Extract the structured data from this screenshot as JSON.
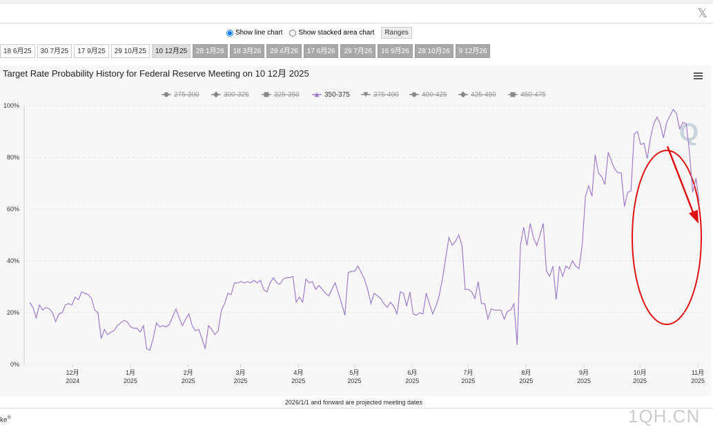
{
  "controls": {
    "options": [
      {
        "label": "Show line chart",
        "checked": true
      },
      {
        "label": "Show stacked area chart",
        "checked": false
      }
    ],
    "ranges": "Ranges"
  },
  "tabs": [
    {
      "label": "18 6月25",
      "state": "plain"
    },
    {
      "label": "30 7月25",
      "state": "plain"
    },
    {
      "label": "17 9月25",
      "state": "plain"
    },
    {
      "label": "29 10月25",
      "state": "plain"
    },
    {
      "label": "10 12月25",
      "state": "selected"
    },
    {
      "label": "28 1月26",
      "state": "projected"
    },
    {
      "label": "18 3月26",
      "state": "projected"
    },
    {
      "label": "29 4月26",
      "state": "projected"
    },
    {
      "label": "17 6月26",
      "state": "projected"
    },
    {
      "label": "29 7月26",
      "state": "projected"
    },
    {
      "label": "16 9月26",
      "state": "projected"
    },
    {
      "label": "28 10月26",
      "state": "projected"
    },
    {
      "label": "9 12月26",
      "state": "projected"
    }
  ],
  "chart_data": {
    "type": "line",
    "title": "Target Rate Probability History for Federal Reserve Meeting on 10 12月 2025",
    "series": [
      {
        "name": "275-300",
        "marker": "circle",
        "visible": false
      },
      {
        "name": "300-325",
        "marker": "diamond",
        "visible": false
      },
      {
        "name": "325-350",
        "marker": "square",
        "visible": false
      },
      {
        "name": "350-375",
        "marker": "triangle",
        "visible": true,
        "color": "#a07cc8",
        "values": [
          24,
          22,
          18,
          23,
          21,
          22,
          21.5,
          20,
          16.5,
          19.5,
          20,
          23,
          23.5,
          23,
          26,
          25,
          28,
          27.5,
          27,
          25.5,
          21,
          20,
          10,
          13.5,
          11.5,
          12.5,
          13,
          15,
          16,
          17,
          16.5,
          14.5,
          14,
          14,
          12.5,
          15,
          6,
          5.5,
          10,
          16,
          14.5,
          15,
          14.5,
          15.5,
          18.5,
          21.5,
          18,
          15,
          17.5,
          19.5,
          15,
          13,
          13.5,
          10,
          6,
          15,
          13.5,
          11.5,
          13,
          21,
          23.5,
          27.5,
          27,
          31.5,
          31.5,
          32,
          31.5,
          32,
          31.5,
          32.5,
          31.5,
          32.5,
          29,
          28,
          31.5,
          33.5,
          31.5,
          31,
          33,
          33.5,
          33.5,
          34,
          24,
          26,
          24,
          33,
          31.5,
          32,
          29,
          30.5,
          29,
          27.5,
          26.5,
          29,
          31.5,
          27.5,
          23.5,
          19,
          35.5,
          36,
          36,
          38,
          35.5,
          33,
          29,
          23.5,
          27.5,
          26.5,
          25.5,
          23.5,
          22,
          24,
          22.5,
          19.5,
          28,
          27.5,
          22.5,
          28,
          19.5,
          19,
          20,
          19.5,
          27.5,
          23.5,
          19.5,
          22.5,
          26.5,
          33,
          41,
          49,
          46,
          47.5,
          50,
          46,
          29,
          29,
          28,
          25.5,
          32,
          23.5,
          23.5,
          17.5,
          21.5,
          21,
          21,
          21,
          17.5,
          20.5,
          21,
          23.5,
          7.5,
          46,
          53,
          46,
          54.5,
          49,
          46,
          50,
          54.5,
          36,
          34,
          38,
          25,
          38,
          34,
          38,
          37,
          40,
          38,
          37,
          46,
          65,
          69,
          65,
          81,
          74,
          72.5,
          69.5,
          82,
          78.5,
          75.5,
          74,
          74,
          61,
          66.5,
          67,
          89,
          90,
          85,
          85.5,
          79.5,
          87.5,
          93,
          95.5,
          93,
          87.5,
          93.5,
          96,
          98.5,
          97,
          91,
          93.5,
          93,
          82,
          66.5,
          72,
          63
        ]
      },
      {
        "name": "375-400",
        "marker": "triangle-down",
        "visible": false
      },
      {
        "name": "400-425",
        "marker": "circle",
        "visible": false
      },
      {
        "name": "425-450",
        "marker": "diamond",
        "visible": false
      },
      {
        "name": "450-475",
        "marker": "square",
        "visible": false
      }
    ],
    "ylim": [
      0,
      100
    ],
    "yticks": [
      {
        "value": 0,
        "label": "0%"
      },
      {
        "value": 20,
        "label": "20%"
      },
      {
        "value": 40,
        "label": "40%"
      },
      {
        "value": 60,
        "label": "60%"
      },
      {
        "value": 80,
        "label": "80%"
      },
      {
        "value": 100,
        "label": "100%"
      }
    ],
    "xlim": [
      "2024-11",
      "2025-11"
    ],
    "xticks": [
      {
        "value": "2024-12",
        "label": [
          "12月",
          "2024"
        ]
      },
      {
        "value": "2025-01",
        "label": [
          "1月",
          "2025"
        ]
      },
      {
        "value": "2025-02",
        "label": [
          "2月",
          "2025"
        ]
      },
      {
        "value": "2025-03",
        "label": [
          "3月",
          "2025"
        ]
      },
      {
        "value": "2025-04",
        "label": [
          "4月",
          "2025"
        ]
      },
      {
        "value": "2025-05",
        "label": [
          "5月",
          "2025"
        ]
      },
      {
        "value": "2025-06",
        "label": [
          "6月",
          "2025"
        ]
      },
      {
        "value": "2025-07",
        "label": [
          "7月",
          "2025"
        ]
      },
      {
        "value": "2025-08",
        "label": [
          "8月",
          "2025"
        ]
      },
      {
        "value": "2025-09",
        "label": [
          "9月",
          "2025"
        ]
      },
      {
        "value": "2025-10",
        "label": [
          "10月",
          "2025"
        ]
      },
      {
        "value": "2025-11",
        "label": [
          "11月",
          "2025"
        ]
      }
    ],
    "grid": true
  },
  "footnote": "2026/1/1 and forward are projected meeting dates",
  "brand": "ke",
  "brand_mark": "®",
  "watermark": "1QH.CN"
}
